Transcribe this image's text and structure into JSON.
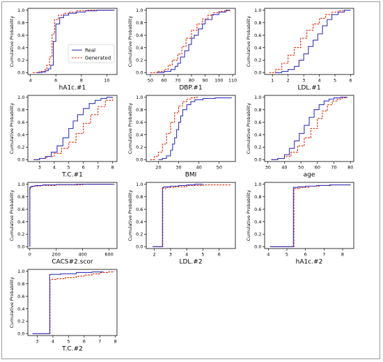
{
  "colors": {
    "real": "#3333bb",
    "generated": "#dd2200",
    "frame": "#9a9a9a"
  },
  "legend": {
    "real_label": "Real",
    "generated_label": "Generated"
  },
  "chart_data": [
    {
      "type": "line",
      "xlabel": "hA1c.#1",
      "ylabel": "Cumulative Probability",
      "xlim": [
        3.8,
        10.8
      ],
      "ylim": [
        -0.03,
        1.03
      ],
      "xticks": [
        4,
        6,
        8,
        10
      ],
      "yticks": [
        0.0,
        0.2,
        0.4,
        0.6,
        0.8,
        1.0
      ],
      "legend": "center-right",
      "series": [
        {
          "name": "Real",
          "style": "solid",
          "x": [
            4.5,
            4.9,
            5.2,
            5.4,
            5.6,
            5.8,
            6.0,
            6.3,
            6.6,
            7.0,
            7.6,
            8.3,
            9.2,
            10.6
          ],
          "y": [
            0.0,
            0.01,
            0.03,
            0.06,
            0.12,
            0.5,
            0.78,
            0.88,
            0.92,
            0.95,
            0.97,
            0.99,
            1.0,
            1.0
          ]
        },
        {
          "name": "Generated",
          "style": "dashed",
          "x": [
            4.2,
            4.7,
            5.1,
            5.3,
            5.5,
            5.7,
            5.9,
            6.2,
            6.6,
            7.0,
            7.6,
            8.4,
            9.2,
            10.6
          ],
          "y": [
            0.0,
            0.02,
            0.05,
            0.12,
            0.25,
            0.62,
            0.85,
            0.92,
            0.95,
            0.97,
            0.99,
            1.0,
            1.0,
            1.0
          ]
        }
      ]
    },
    {
      "type": "line",
      "xlabel": "DBP.#1",
      "ylabel": "Cumulative Probability",
      "xlim": [
        47,
        112
      ],
      "ylim": [
        -0.03,
        1.03
      ],
      "xticks": [
        50,
        60,
        70,
        80,
        90,
        100,
        110
      ],
      "yticks": [
        0.0,
        0.2,
        0.4,
        0.6,
        0.8,
        1.0
      ],
      "series": [
        {
          "name": "Real",
          "style": "solid",
          "x": [
            55,
            60,
            65,
            68,
            70,
            72,
            75,
            78,
            80,
            82,
            85,
            88,
            90,
            95,
            100,
            105,
            108
          ],
          "y": [
            0.0,
            0.02,
            0.05,
            0.1,
            0.15,
            0.25,
            0.35,
            0.45,
            0.55,
            0.6,
            0.7,
            0.78,
            0.85,
            0.93,
            0.97,
            1.0,
            1.0
          ]
        },
        {
          "name": "Generated",
          "style": "dashed",
          "x": [
            50,
            55,
            60,
            63,
            66,
            70,
            73,
            76,
            80,
            84,
            88,
            92,
            96,
            100,
            104,
            108
          ],
          "y": [
            0.0,
            0.02,
            0.05,
            0.12,
            0.2,
            0.3,
            0.42,
            0.55,
            0.68,
            0.78,
            0.86,
            0.92,
            0.96,
            0.98,
            0.99,
            1.0
          ]
        }
      ]
    },
    {
      "type": "line",
      "xlabel": "LDL.#1",
      "ylabel": "Cumulative Probability",
      "xlim": [
        0.5,
        6.2
      ],
      "ylim": [
        -0.03,
        1.03
      ],
      "xticks": [
        1,
        2,
        3,
        4,
        5,
        6
      ],
      "yticks": [
        0.0,
        0.2,
        0.4,
        0.6,
        0.8,
        1.0
      ],
      "series": [
        {
          "name": "Real",
          "style": "solid",
          "x": [
            1.2,
            1.6,
            2.0,
            2.4,
            2.7,
            3.0,
            3.3,
            3.6,
            3.9,
            4.2,
            4.5,
            4.8,
            5.2,
            5.6,
            6.0
          ],
          "y": [
            0.0,
            0.02,
            0.05,
            0.1,
            0.2,
            0.3,
            0.42,
            0.52,
            0.62,
            0.75,
            0.85,
            0.93,
            0.97,
            1.0,
            1.0
          ]
        },
        {
          "name": "Generated",
          "style": "dashed",
          "x": [
            0.8,
            1.2,
            1.6,
            2.0,
            2.4,
            2.8,
            3.2,
            3.6,
            4.0,
            4.4,
            4.8,
            5.2,
            5.6
          ],
          "y": [
            0.0,
            0.05,
            0.15,
            0.28,
            0.4,
            0.55,
            0.68,
            0.78,
            0.87,
            0.93,
            0.97,
            0.99,
            1.0
          ]
        }
      ]
    },
    {
      "type": "line",
      "xlabel": "T.C.#1",
      "ylabel": "Cumulative Probability",
      "xlim": [
        2.2,
        8.3
      ],
      "ylim": [
        -0.03,
        1.03
      ],
      "xticks": [
        3,
        4,
        5,
        6,
        7,
        8
      ],
      "yticks": [
        0.0,
        0.2,
        0.4,
        0.6,
        0.8,
        1.0
      ],
      "series": [
        {
          "name": "Real",
          "style": "solid",
          "x": [
            2.6,
            3.0,
            3.4,
            3.8,
            4.2,
            4.6,
            5.0,
            5.3,
            5.6,
            6.0,
            6.4,
            6.8,
            7.2,
            7.6,
            8.0
          ],
          "y": [
            0.0,
            0.02,
            0.05,
            0.12,
            0.22,
            0.35,
            0.5,
            0.62,
            0.72,
            0.82,
            0.9,
            0.95,
            0.98,
            1.0,
            1.0
          ]
        },
        {
          "name": "Generated",
          "style": "dashed",
          "x": [
            2.6,
            3.0,
            3.5,
            4.0,
            4.5,
            5.0,
            5.5,
            6.0,
            6.5,
            7.0,
            7.5,
            8.0
          ],
          "y": [
            0.0,
            0.02,
            0.05,
            0.1,
            0.18,
            0.28,
            0.42,
            0.58,
            0.72,
            0.85,
            0.95,
            1.0
          ]
        }
      ]
    },
    {
      "type": "line",
      "xlabel": "BMI",
      "ylabel": "Cumulative Probability",
      "xlim": [
        14,
        58
      ],
      "ylim": [
        -0.03,
        1.03
      ],
      "xticks": [
        20,
        30,
        40,
        50
      ],
      "yticks": [
        0.0,
        0.2,
        0.4,
        0.6,
        0.8,
        1.0
      ],
      "series": [
        {
          "name": "Real",
          "style": "solid",
          "x": [
            20,
            22,
            24,
            26,
            27,
            28,
            29,
            30,
            31,
            32,
            34,
            36,
            38,
            42,
            48,
            56
          ],
          "y": [
            0.0,
            0.02,
            0.06,
            0.15,
            0.25,
            0.35,
            0.48,
            0.6,
            0.7,
            0.8,
            0.88,
            0.93,
            0.96,
            0.98,
            0.99,
            1.0
          ]
        },
        {
          "name": "Generated",
          "style": "dashed",
          "x": [
            16,
            18,
            20,
            22,
            24,
            26,
            28,
            30,
            32,
            34,
            36,
            38,
            40
          ],
          "y": [
            0.0,
            0.05,
            0.12,
            0.25,
            0.42,
            0.6,
            0.75,
            0.86,
            0.93,
            0.97,
            0.99,
            1.0,
            1.0
          ]
        }
      ]
    },
    {
      "type": "line",
      "xlabel": "age",
      "ylabel": "Cumulative Probability",
      "xlim": [
        28,
        82
      ],
      "ylim": [
        -0.03,
        1.03
      ],
      "xticks": [
        30,
        40,
        50,
        60,
        70,
        80
      ],
      "yticks": [
        0.0,
        0.2,
        0.4,
        0.6,
        0.8,
        1.0
      ],
      "series": [
        {
          "name": "Real",
          "style": "solid",
          "x": [
            32,
            36,
            40,
            43,
            46,
            49,
            52,
            55,
            58,
            61,
            64,
            67,
            70,
            74,
            78
          ],
          "y": [
            0.0,
            0.02,
            0.08,
            0.18,
            0.3,
            0.42,
            0.55,
            0.68,
            0.8,
            0.88,
            0.94,
            0.97,
            0.99,
            1.0,
            1.0
          ]
        },
        {
          "name": "Generated",
          "style": "dashed",
          "x": [
            32,
            36,
            40,
            44,
            48,
            52,
            56,
            60,
            63,
            66,
            69,
            72,
            75,
            78
          ],
          "y": [
            0.0,
            0.02,
            0.05,
            0.12,
            0.22,
            0.35,
            0.5,
            0.66,
            0.78,
            0.88,
            0.94,
            0.97,
            0.99,
            1.0
          ]
        }
      ]
    },
    {
      "type": "line",
      "xlabel": "CACS#2.scor",
      "ylabel": "Cumulative Probability",
      "xlim": [
        -15,
        660
      ],
      "ylim": [
        -0.03,
        1.03
      ],
      "xticks": [
        0,
        200,
        400,
        600
      ],
      "yticks": [
        0.0,
        0.2,
        0.4,
        0.6,
        0.8,
        1.0
      ],
      "series": [
        {
          "name": "Real",
          "style": "solid",
          "x": [
            0,
            0,
            6,
            15,
            40,
            100,
            200,
            350,
            640
          ],
          "y": [
            0.0,
            0.95,
            0.96,
            0.97,
            0.98,
            0.99,
            0.995,
            1.0,
            1.0
          ]
        },
        {
          "name": "Generated",
          "style": "dashed",
          "x": [
            0,
            0,
            5,
            12,
            30,
            80,
            200,
            400,
            640
          ],
          "y": [
            0.0,
            0.93,
            0.95,
            0.96,
            0.97,
            0.98,
            0.99,
            1.0,
            1.0
          ]
        }
      ]
    },
    {
      "type": "line",
      "xlabel": "LDL.#2",
      "ylabel": "Cumulative Probability",
      "xlim": [
        1.5,
        7.0
      ],
      "ylim": [
        -0.03,
        1.03
      ],
      "xticks": [
        2,
        3,
        4,
        5,
        6
      ],
      "yticks": [
        0.0,
        0.2,
        0.4,
        0.6,
        0.8,
        1.0
      ],
      "series": [
        {
          "name": "Real",
          "style": "solid",
          "x": [
            1.9,
            2.5,
            2.5,
            2.6,
            3.0,
            3.5,
            4.0,
            4.5,
            5.0
          ],
          "y": [
            0.0,
            0.0,
            0.95,
            0.96,
            0.97,
            0.98,
            0.99,
            1.0,
            1.0
          ]
        },
        {
          "name": "Generated",
          "style": "dashed",
          "x": [
            1.9,
            2.52,
            2.52,
            2.7,
            3.2,
            4.0,
            5.0,
            6.7
          ],
          "y": [
            0.0,
            0.0,
            0.93,
            0.95,
            0.96,
            0.98,
            0.99,
            1.0
          ]
        }
      ]
    },
    {
      "type": "line",
      "xlabel": "hA1c.#2",
      "ylabel": "Cumulative Probability",
      "xlim": [
        3.8,
        8.6
      ],
      "ylim": [
        -0.03,
        1.03
      ],
      "xticks": [
        4,
        5,
        6,
        7,
        8
      ],
      "yticks": [
        0.0,
        0.2,
        0.4,
        0.6,
        0.8,
        1.0
      ],
      "series": [
        {
          "name": "Real",
          "style": "solid",
          "x": [
            4.1,
            5.35,
            5.35,
            5.6,
            6.0,
            6.6,
            7.3,
            8.4
          ],
          "y": [
            0.0,
            0.0,
            0.95,
            0.96,
            0.97,
            0.98,
            0.99,
            1.0
          ]
        },
        {
          "name": "Generated",
          "style": "dashed",
          "x": [
            4.1,
            5.38,
            5.38,
            5.7,
            6.2,
            6.8,
            7.4,
            8.4
          ],
          "y": [
            0.0,
            0.0,
            0.93,
            0.95,
            0.97,
            0.98,
            0.99,
            1.0
          ]
        }
      ]
    },
    {
      "type": "line",
      "xlabel": "T.C.#2",
      "ylabel": "Cumulative Probability",
      "xlim": [
        2.4,
        8.1
      ],
      "ylim": [
        -0.03,
        1.03
      ],
      "xticks": [
        3,
        4,
        5,
        6,
        7,
        8
      ],
      "yticks": [
        0.0,
        0.2,
        0.4,
        0.6,
        0.8,
        1.0
      ],
      "series": [
        {
          "name": "Real",
          "style": "solid",
          "x": [
            2.7,
            3.8,
            3.8,
            4.5,
            5.5,
            6.5,
            7.2
          ],
          "y": [
            0.0,
            0.0,
            0.95,
            0.96,
            0.98,
            0.99,
            1.0
          ]
        },
        {
          "name": "Generated",
          "style": "dashed",
          "x": [
            2.7,
            3.82,
            3.82,
            4.2,
            4.8,
            5.5,
            6.0,
            6.5,
            7.0,
            7.5,
            7.9
          ],
          "y": [
            0.0,
            0.0,
            0.87,
            0.88,
            0.9,
            0.92,
            0.94,
            0.96,
            0.98,
            0.99,
            1.0
          ]
        }
      ]
    }
  ]
}
